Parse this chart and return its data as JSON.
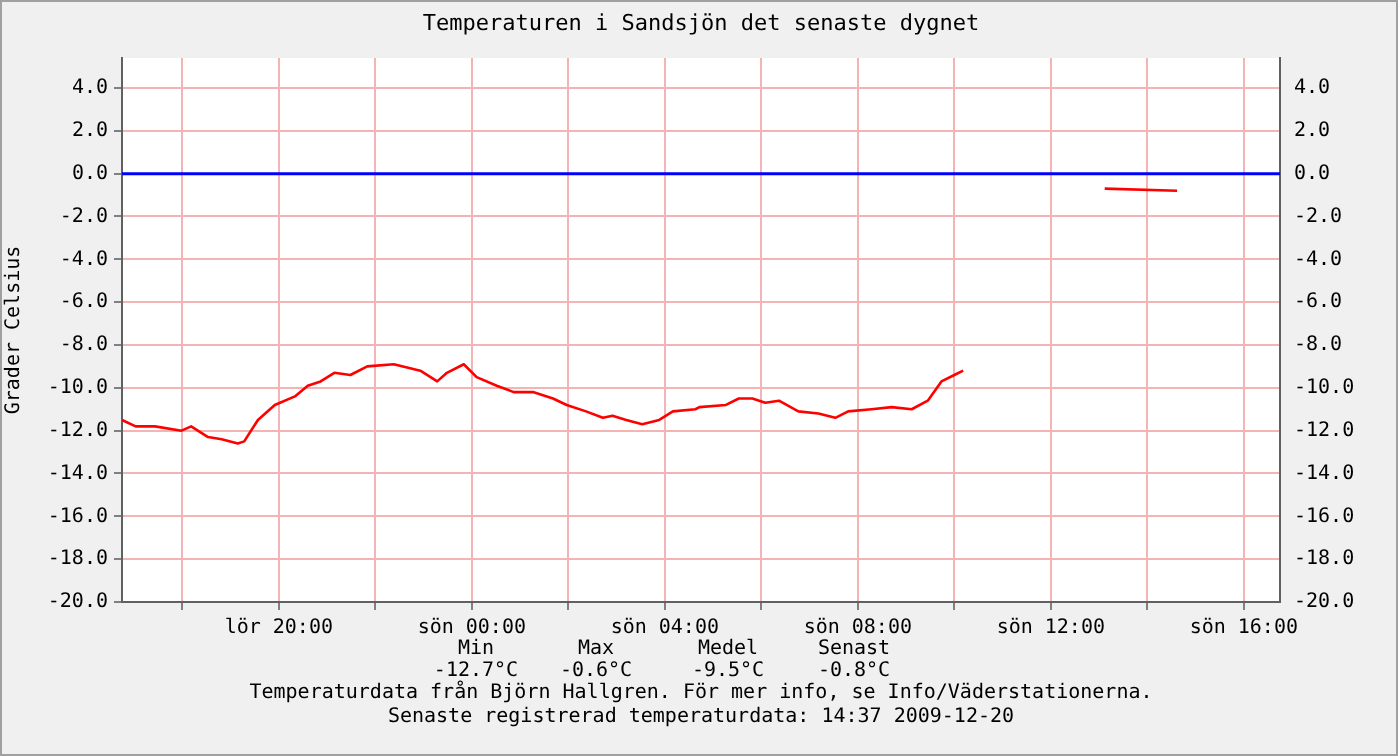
{
  "chart_data": {
    "type": "line",
    "title": "Temperaturen i Sandsjön det senaste dygnet",
    "ylabel": "Grader Celsius",
    "annotations": [
      "Min",
      "Max",
      "Medel",
      "Senast",
      "-12.7°C",
      "-0.6°C",
      "-9.5°C",
      "-0.8°C",
      "Temperaturdata från Björn Hallgren. För mer info, se Info/Väderstationerna.",
      "Senaste registrerad temperaturdata: 14:37 2009-12-20"
    ],
    "series": [
      {
        "color": "#ff0000",
        "x": [
          "2009-12-19T16:45",
          "2009-12-19T17:02",
          "2009-12-19T17:26",
          "2009-12-19T17:59",
          "2009-12-19T18:11",
          "2009-12-19T18:32",
          "2009-12-19T18:49",
          "2009-12-19T19:09",
          "2009-12-19T19:17",
          "2009-12-19T19:34",
          "2009-12-19T19:55",
          "2009-12-19T20:20",
          "2009-12-19T20:36",
          "2009-12-19T20:52",
          "2009-12-19T21:09",
          "2009-12-19T21:29",
          "2009-12-19T21:50",
          "2009-12-19T22:23",
          "2009-12-19T22:56",
          "2009-12-19T23:17",
          "2009-12-19T23:29",
          "2009-12-19T23:50",
          "2009-12-20T00:06",
          "2009-12-20T00:31",
          "2009-12-20T00:52",
          "2009-12-20T01:16",
          "2009-12-20T01:41",
          "2009-12-20T01:58",
          "2009-12-20T02:22",
          "2009-12-20T02:43",
          "2009-12-20T02:55",
          "2009-12-20T03:12",
          "2009-12-20T03:32",
          "2009-12-20T03:53",
          "2009-12-20T04:10",
          "2009-12-20T04:38",
          "2009-12-20T04:43",
          "2009-12-20T05:16",
          "2009-12-20T05:32",
          "2009-12-20T05:49",
          "2009-12-20T06:05",
          "2009-12-20T06:22",
          "2009-12-20T06:46",
          "2009-12-20T07:11",
          "2009-12-20T07:32",
          "2009-12-20T07:48",
          "2009-12-20T08:17",
          "2009-12-20T08:42",
          "2009-12-20T09:07",
          "2009-12-20T09:27",
          "2009-12-20T09:44",
          "2009-12-20T10:00",
          "2009-12-20T10:11",
          "2009-12-20T11:30",
          "2009-12-20T13:07",
          "2009-12-20T14:37"
        ],
        "values": [
          -11.5,
          -11.8,
          -11.8,
          -12.0,
          -11.8,
          -12.3,
          -12.4,
          -12.6,
          -12.5,
          -11.5,
          -10.8,
          -10.4,
          -9.9,
          -9.7,
          -9.3,
          -9.4,
          -9.0,
          -8.9,
          -9.2,
          -9.7,
          -9.3,
          -8.9,
          -9.5,
          -9.9,
          -10.2,
          -10.2,
          -10.5,
          -10.8,
          -11.1,
          -11.4,
          -11.3,
          -11.5,
          -11.7,
          -11.5,
          -11.1,
          -11.0,
          -10.9,
          -10.8,
          -10.5,
          -10.5,
          -10.7,
          -10.6,
          -11.1,
          -11.2,
          -11.4,
          -11.1,
          -11.0,
          -10.9,
          -11.0,
          -10.6,
          -9.7,
          -9.4,
          -9.2,
          null,
          -0.7,
          -0.8
        ]
      }
    ],
    "xlim": [
      "2009-12-19T16:45",
      "2009-12-20T16:45"
    ],
    "xticks": [
      {
        "value": "2009-12-19T18:00",
        "label": null
      },
      {
        "value": "2009-12-19T20:00",
        "label": "lör 20:00"
      },
      {
        "value": "2009-12-19T22:00",
        "label": null
      },
      {
        "value": "2009-12-20T00:00",
        "label": "sön 00:00"
      },
      {
        "value": "2009-12-20T02:00",
        "label": null
      },
      {
        "value": "2009-12-20T04:00",
        "label": "sön 04:00"
      },
      {
        "value": "2009-12-20T06:00",
        "label": null
      },
      {
        "value": "2009-12-20T08:00",
        "label": "sön 08:00"
      },
      {
        "value": "2009-12-20T10:00",
        "label": null
      },
      {
        "value": "2009-12-20T12:00",
        "label": "sön 12:00"
      },
      {
        "value": "2009-12-20T14:00",
        "label": null
      },
      {
        "value": "2009-12-20T16:00",
        "label": "sön 16:00"
      }
    ],
    "ylim": [
      -20,
      5.4
    ],
    "yticks": [
      {
        "value": -20,
        "label": "-20.0"
      },
      {
        "value": -18,
        "label": "-18.0"
      },
      {
        "value": -16,
        "label": "-16.0"
      },
      {
        "value": -14,
        "label": "-14.0"
      },
      {
        "value": -12,
        "label": "-12.0"
      },
      {
        "value": -10,
        "label": "-10.0"
      },
      {
        "value": -8,
        "label": "-8.0"
      },
      {
        "value": -6,
        "label": "-6.0"
      },
      {
        "value": -4,
        "label": "-4.0"
      },
      {
        "value": -2,
        "label": "-2.0"
      },
      {
        "value": 0,
        "label": "0.0"
      },
      {
        "value": 2,
        "label": "2.0"
      },
      {
        "value": 4,
        "label": "4.0"
      }
    ],
    "y2lim": [
      -20,
      5.4
    ],
    "y2ticks": [
      {
        "value": -20,
        "label": "-20.0"
      },
      {
        "value": -18,
        "label": "-18.0"
      },
      {
        "value": -16,
        "label": "-16.0"
      },
      {
        "value": -14,
        "label": "-14.0"
      },
      {
        "value": -12,
        "label": "-12.0"
      },
      {
        "value": -10,
        "label": "-10.0"
      },
      {
        "value": -8,
        "label": "-8.0"
      },
      {
        "value": -6,
        "label": "-6.0"
      },
      {
        "value": -4,
        "label": "-4.0"
      },
      {
        "value": -2,
        "label": "-2.0"
      },
      {
        "value": 0,
        "label": "0.0"
      },
      {
        "value": 2,
        "label": "2.0"
      },
      {
        "value": 4,
        "label": "4.0"
      }
    ],
    "ref_lines": [
      {
        "axis": "y",
        "value": 0,
        "color": "#0000ff"
      }
    ],
    "grid": true,
    "legend": false,
    "marker": "none",
    "line_style": "solid"
  }
}
